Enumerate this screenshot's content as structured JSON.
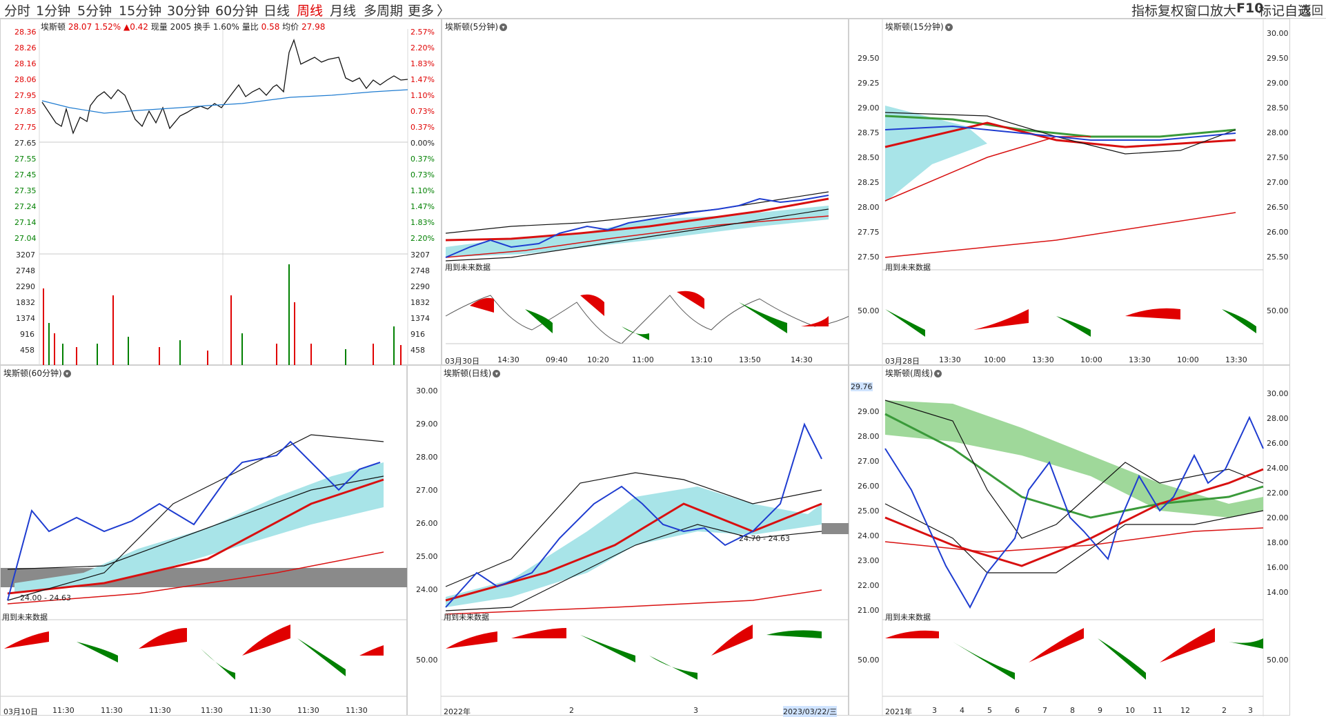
{
  "toolbar": {
    "periods": [
      "分时",
      "1分钟",
      "5分钟",
      "15分钟",
      "30分钟",
      "60分钟",
      "日线",
      "周线",
      "月线",
      "多周期",
      "更多"
    ],
    "active_period": "周线",
    "more_chevron": "〉",
    "tools": [
      "指标",
      "复权",
      "窗口",
      "放大",
      "F10",
      "标记",
      "自选",
      "返回"
    ]
  },
  "colors": {
    "up": "#e00000",
    "down": "#008000",
    "ma": "#1e5bd0"
  },
  "intraday": {
    "stock": "埃斯顿",
    "price": "28.07",
    "pct": "1.52%",
    "chg": "▲0.42",
    "vol_label": "现量",
    "vol": "2005",
    "turnover_label": "换手",
    "turnover": "1.60%",
    "ratio_label": "量比",
    "ratio": "0.58",
    "avg_label": "均价",
    "avg": "27.98",
    "price_axis": [
      "28.36",
      "28.26",
      "28.16",
      "28.06",
      "27.95",
      "27.85",
      "27.75",
      "27.65",
      "27.55",
      "27.45",
      "27.35",
      "27.24",
      "27.14",
      "27.04"
    ],
    "pct_axis": [
      "2.57%",
      "2.20%",
      "1.83%",
      "1.47%",
      "1.10%",
      "0.73%",
      "0.37%",
      "0.00%",
      "0.37%",
      "0.73%",
      "1.10%",
      "1.47%",
      "1.83%",
      "2.20%"
    ],
    "vol_axis": [
      "3207",
      "2748",
      "2290",
      "1832",
      "1374",
      "916",
      "458"
    ]
  },
  "panes": {
    "m5": {
      "title": "埃斯顿(5分钟)",
      "note": "用到未来数据",
      "x_labels": [
        "03月30日",
        "14:30",
        "09:40",
        "10:20",
        "11:00",
        "13:10",
        "13:50",
        "14:30"
      ]
    },
    "m15": {
      "title": "埃斯顿(15分钟)",
      "note": "用到未来数据",
      "y_axis": [
        "29.50",
        "29.25",
        "29.00",
        "28.75",
        "28.50",
        "28.25",
        "28.00",
        "27.75",
        "27.50"
      ],
      "ind_axis": "50.00",
      "x_labels": [
        "03月28日",
        "13:30",
        "10:00",
        "13:30",
        "10:00",
        "13:30",
        "10:00",
        "13:30"
      ]
    },
    "m60": {
      "title": "埃斯顿(60分钟)",
      "note": "用到未来数据",
      "band": "24.00 - 24.63",
      "x_labels": [
        "03月10日",
        "11:30",
        "11:30",
        "11:30",
        "11:30",
        "11:30",
        "11:30",
        "11:30"
      ]
    },
    "day": {
      "title": "埃斯顿(日线)",
      "note": "用到未来数据",
      "band": "24.70 - 24.63",
      "y_axis": [
        "30.00",
        "29.00",
        "28.00",
        "27.00",
        "26.00",
        "25.00",
        "24.00"
      ],
      "ind_axis": "50.00",
      "x_labels": [
        "2022年",
        "2",
        "3"
      ],
      "date_tag": "2023/03/22/三"
    },
    "week": {
      "title": "埃斯顿(周线)",
      "note": "用到未来数据",
      "price_tag": "29.76",
      "y_axis": [
        "29.00",
        "28.00",
        "27.00",
        "26.00",
        "25.00",
        "24.00",
        "23.00",
        "22.00",
        "21.00"
      ],
      "ind_axis": "50.00",
      "x_labels": [
        "2021年",
        "3",
        "4",
        "5",
        "6",
        "7",
        "8",
        "9",
        "10",
        "11",
        "12",
        "2",
        "3"
      ]
    }
  },
  "right_axis_top": [
    "30.00",
    "29.50",
    "29.00",
    "28.50",
    "28.00",
    "27.50",
    "27.00",
    "26.50",
    "26.00",
    "25.50",
    "50.00"
  ],
  "right_axis_bottom": [
    "30.00",
    "28.00",
    "26.00",
    "24.00",
    "22.00",
    "20.00",
    "18.00",
    "16.00",
    "14.00",
    "50.00"
  ]
}
